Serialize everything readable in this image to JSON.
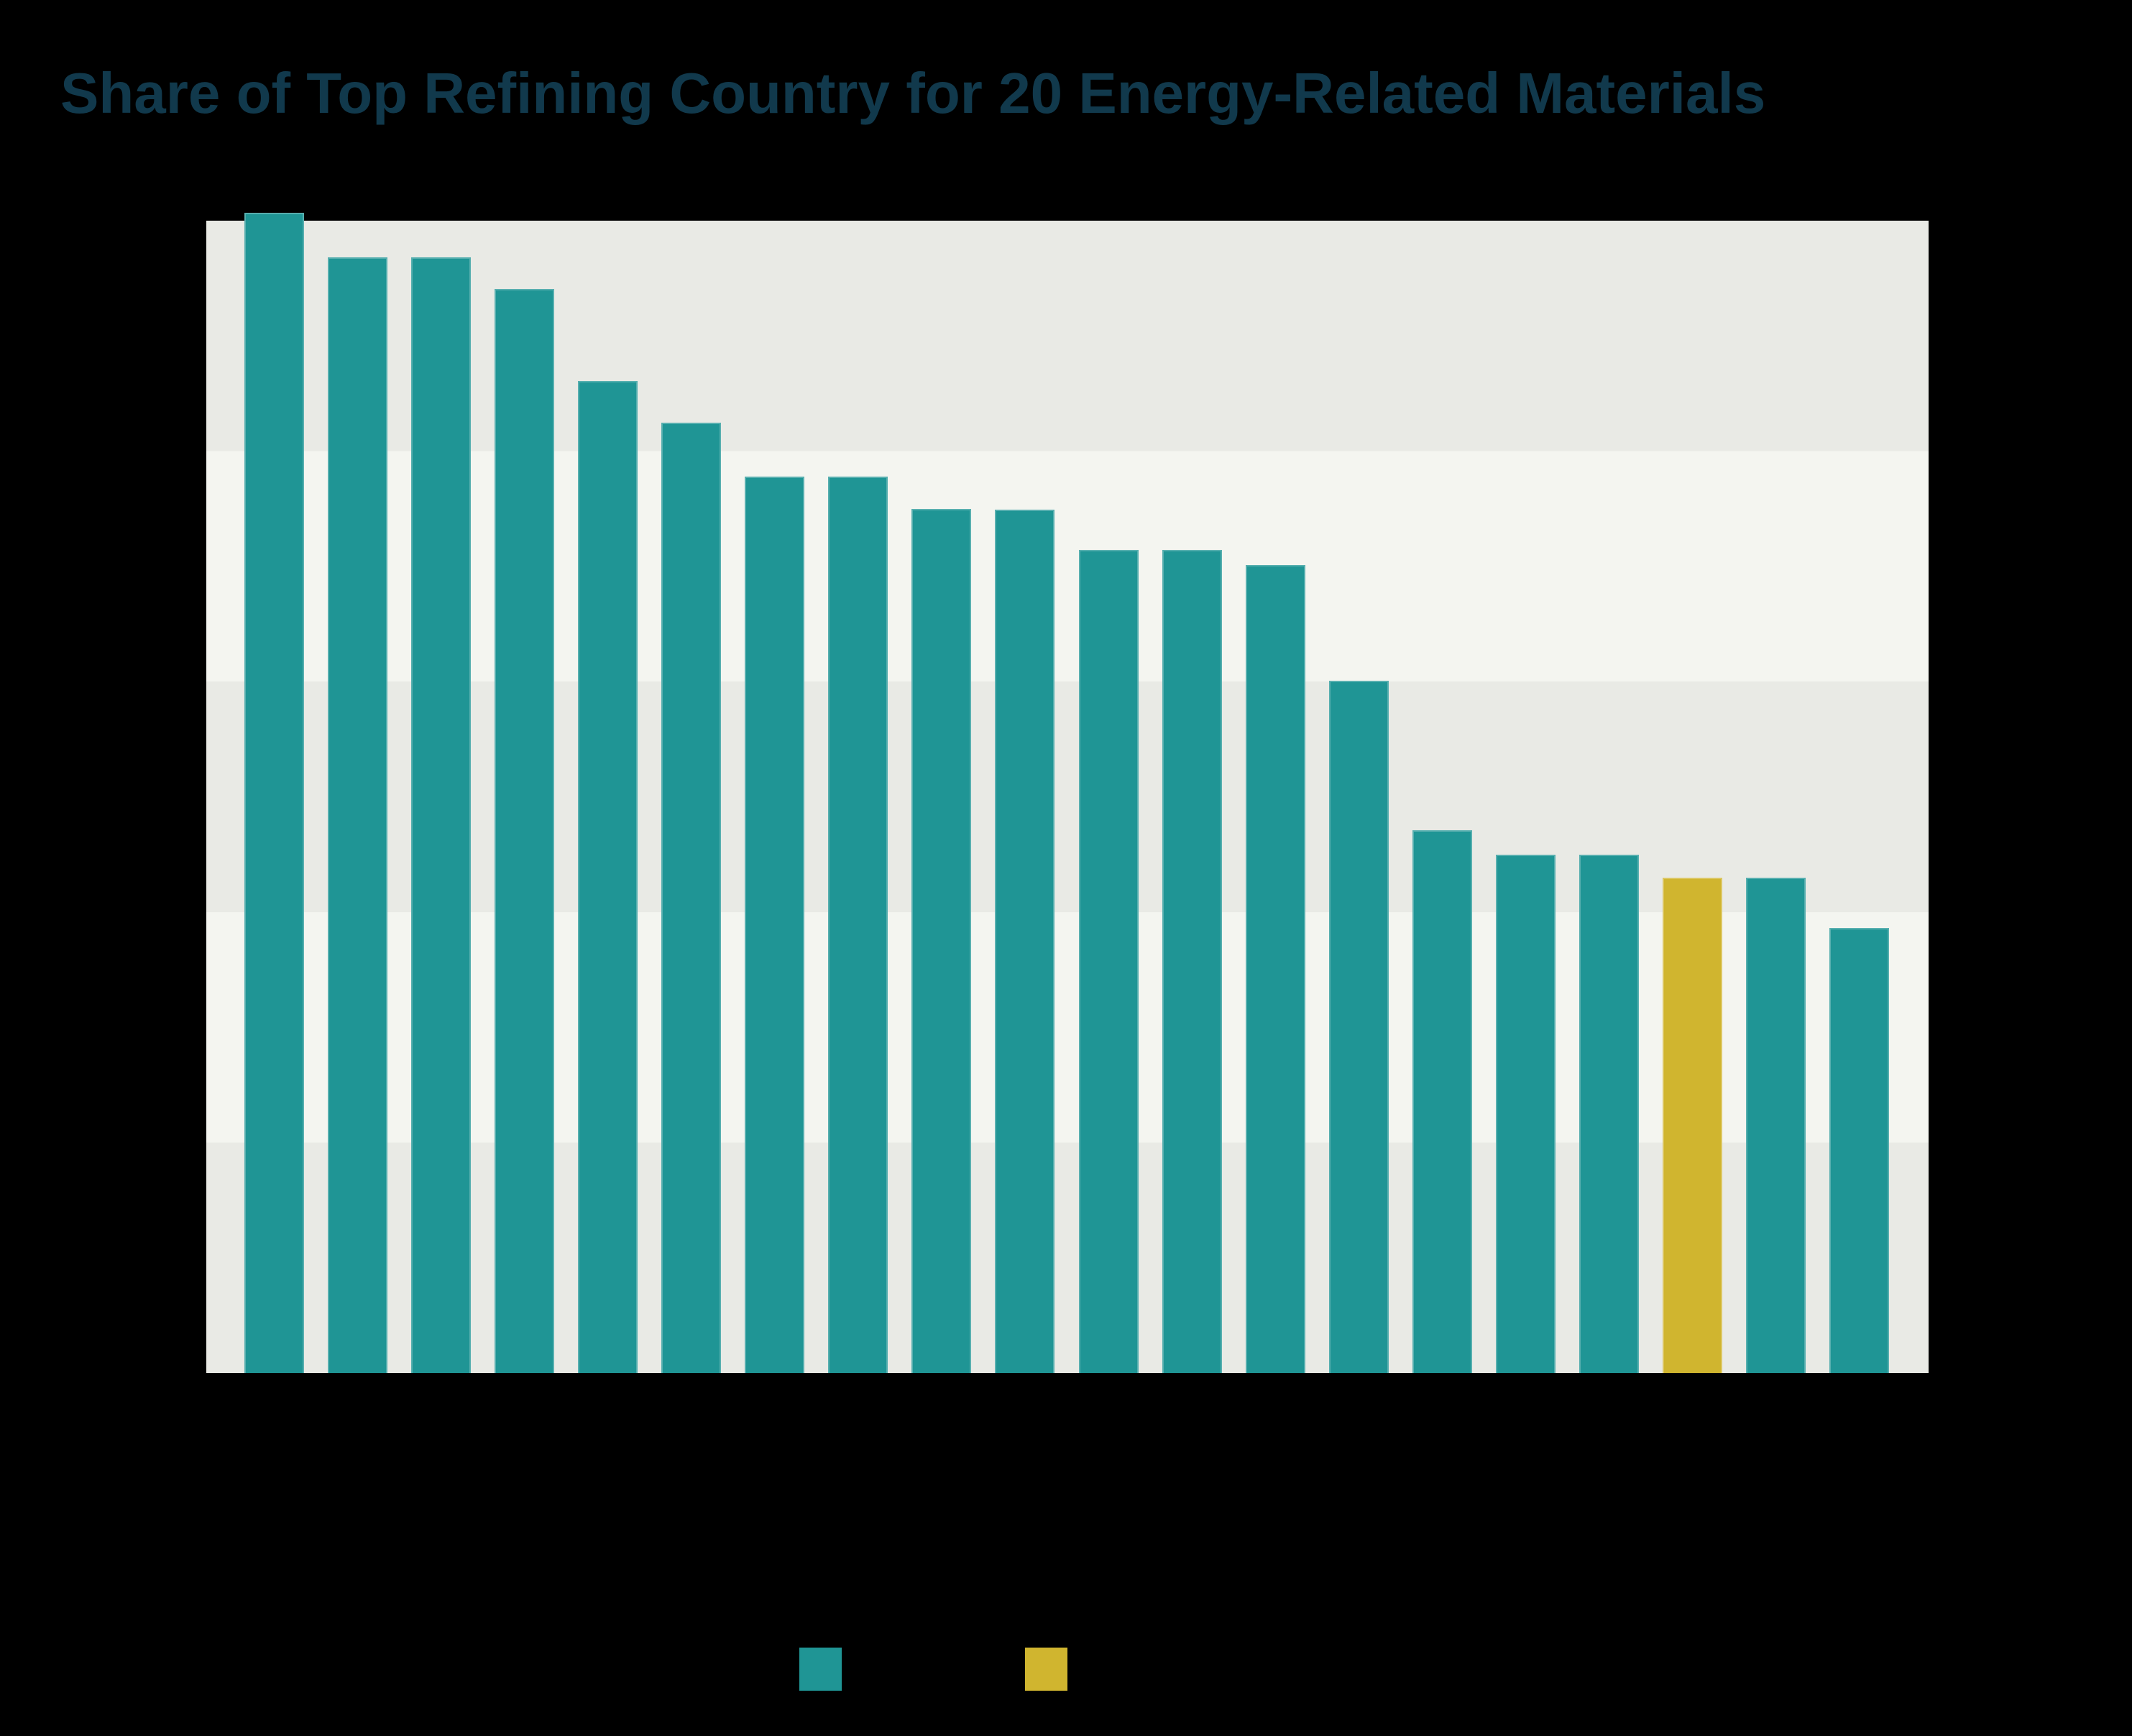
{
  "title": {
    "text": "Share of Top Refining Country for 20 Energy-Related Materials",
    "color": "#11394C"
  },
  "background_color": "#000000",
  "chart_data": {
    "type": "bar",
    "title": "Share of Top Refining Country for 20 Energy-Related Materials",
    "xlabel": "",
    "ylabel": "",
    "n_bars": 20,
    "categories": [
      "",
      "",
      "",
      "",
      "",
      "",
      "",
      "",
      "",
      "",
      "",
      "",
      "",
      "",
      "",
      "",
      "",
      "",
      "",
      ""
    ],
    "axis_labels_visible": false,
    "values": [
      100.7,
      96.8,
      96.8,
      94.1,
      86.1,
      82.5,
      77.8,
      77.8,
      75.0,
      74.9,
      71.4,
      71.4,
      70.1,
      60.1,
      47.1,
      45.0,
      45.0,
      43.0,
      43.0,
      38.6
    ],
    "highlight_index": 17,
    "series_color": "#1F9595",
    "highlight_color": "#D0B52F",
    "ylim": [
      0,
      100
    ],
    "grid_step": 20,
    "grid_bands_visible": true,
    "band_colors": [
      "#E9EAE5",
      "#F4F5F0"
    ],
    "legend": {
      "position": "bottom",
      "items": [
        {
          "color": "#1F9595",
          "label": ""
        },
        {
          "color": "#D0B52F",
          "label": ""
        }
      ]
    }
  }
}
